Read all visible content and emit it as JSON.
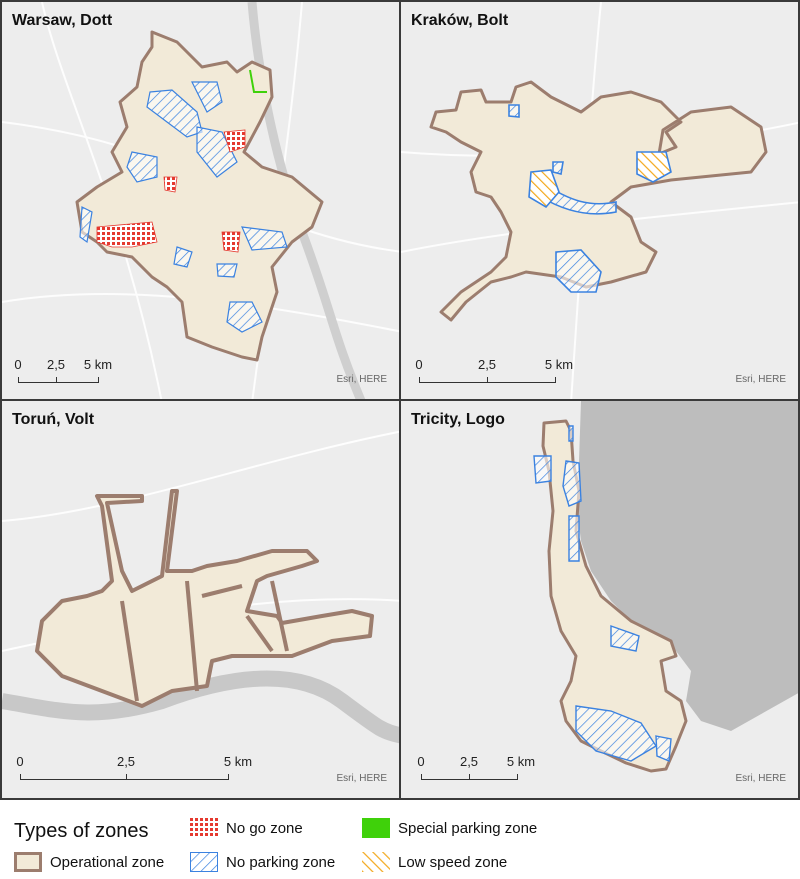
{
  "panels": [
    {
      "title": "Warsaw, Dott",
      "attribution": "Esri, HERE",
      "scale": [
        "0",
        "2,5",
        "5 km"
      ]
    },
    {
      "title": "Kraków, Bolt",
      "attribution": "Esri, HERE",
      "scale": [
        "0",
        "2,5",
        "5 km"
      ]
    },
    {
      "title": "Toruń, Volt",
      "attribution": "Esri, HERE",
      "scale": [
        "0",
        "2,5",
        "5 km"
      ]
    },
    {
      "title": "Tricity, Logo",
      "attribution": "Esri, HERE",
      "scale": [
        "0",
        "2,5",
        "5 km"
      ]
    }
  ],
  "legend": {
    "title": "Types of zones",
    "items": [
      {
        "label": "Operational zone",
        "kind": "operational"
      },
      {
        "label": "No go zone",
        "kind": "no-go"
      },
      {
        "label": "No parking zone",
        "kind": "no-parking"
      },
      {
        "label": "Special parking zone",
        "kind": "special-parking"
      },
      {
        "label": "Low speed zone",
        "kind": "low-speed"
      }
    ]
  },
  "colors": {
    "operational_fill": "#f2ead8",
    "operational_border": "#9c7d6e",
    "no_go": "#e5392f",
    "no_parking": "#3b82e0",
    "special_parking": "#3fd10a",
    "low_speed": "#f3a81c",
    "water": "#cfcfcf",
    "sea": "#bdbdbd"
  }
}
